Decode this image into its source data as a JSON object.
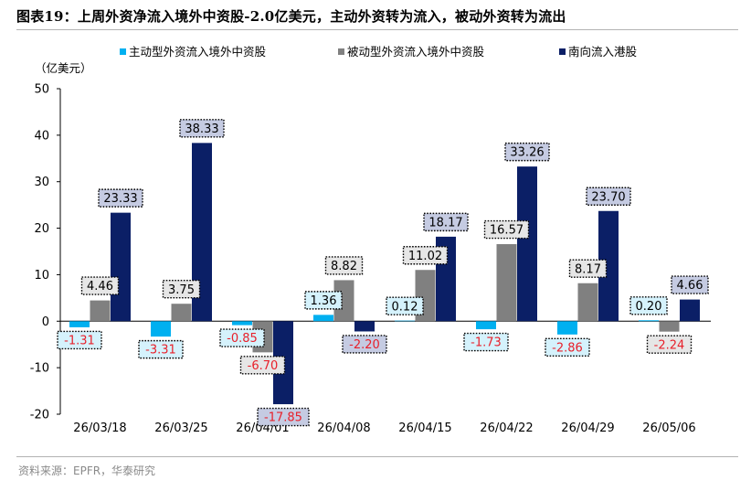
{
  "header": {
    "title": "图表19：上周外资净流入境外中资股-2.0亿美元，主动外资转为流入，被动外资转为流出"
  },
  "footer": {
    "source": "资料来源：EPFR，华泰研究"
  },
  "chart_data": {
    "type": "bar",
    "unit_label": "（亿美元）",
    "categories": [
      "26/03/18",
      "26/03/25",
      "26/04/01",
      "26/04/08",
      "26/04/15",
      "26/04/22",
      "26/04/29",
      "26/05/06"
    ],
    "ylim": [
      -20,
      50
    ],
    "yticks": [
      -20,
      -10,
      0,
      10,
      20,
      30,
      40,
      50
    ],
    "legend_position": "top",
    "series": [
      {
        "name": "主动型外资流入境外中资股",
        "color": "#00b0f0",
        "label_bg": "#d5f2fc",
        "values": [
          -1.31,
          -3.31,
          -0.85,
          1.36,
          0.12,
          -1.73,
          -2.86,
          0.2
        ],
        "labels": [
          "-1.31",
          "-3.31",
          "-0.85",
          "1.36",
          "0.12",
          "-1.73",
          "-2.86",
          "0.20"
        ]
      },
      {
        "name": "被动型外资流入境外中资股",
        "color": "#808080",
        "label_bg": "#e6e6e6",
        "values": [
          4.46,
          3.75,
          -6.7,
          8.82,
          11.02,
          16.57,
          8.17,
          -2.24
        ],
        "labels": [
          "4.46",
          "3.75",
          "-6.70",
          "8.82",
          "11.02",
          "16.57",
          "8.17",
          "-2.24"
        ]
      },
      {
        "name": "南向流入港股",
        "color": "#0b1f66",
        "label_bg": "#c5cbe2",
        "values": [
          23.33,
          38.33,
          -17.85,
          -2.2,
          18.17,
          33.26,
          23.7,
          4.66
        ],
        "labels": [
          "23.33",
          "38.33",
          "-17.85",
          "-2.20",
          "18.17",
          "33.26",
          "23.70",
          "4.66"
        ]
      }
    ],
    "negative_label_color": "#e8202a",
    "positive_label_color": "#000000"
  }
}
